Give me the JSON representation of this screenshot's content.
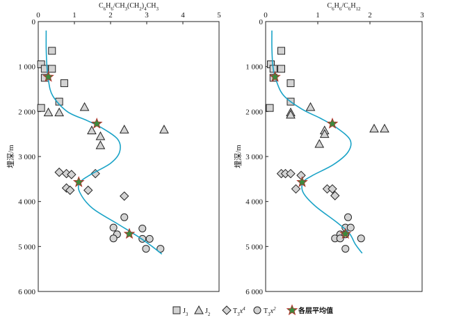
{
  "chart_data": [
    {
      "type": "scatter",
      "title": "C6H6/CH3(CH2)4CH3",
      "title_parts": [
        {
          "t": "C",
          "s": ""
        },
        {
          "t": "6",
          "s": "sub"
        },
        {
          "t": "H",
          "s": ""
        },
        {
          "t": "6",
          "s": "sub"
        },
        {
          "t": "/CH",
          "s": ""
        },
        {
          "t": "3",
          "s": "sub"
        },
        {
          "t": "(CH",
          "s": ""
        },
        {
          "t": "2",
          "s": "sub"
        },
        {
          "t": ")",
          "s": ""
        },
        {
          "t": "4",
          "s": "sub"
        },
        {
          "t": "CH",
          "s": ""
        },
        {
          "t": "3",
          "s": "sub"
        }
      ],
      "ylabel": "埋深/m",
      "xlim": [
        0,
        5
      ],
      "ylim": [
        0,
        6000
      ],
      "x_ticks": [
        "0",
        "1",
        "2",
        "3",
        "4",
        "5"
      ],
      "y_ticks": [
        "0",
        "1 000",
        "2 000",
        "3 000",
        "4 000",
        "5 000",
        "6 000"
      ],
      "series": [
        {
          "name": "J3",
          "marker": "square",
          "points": [
            [
              0.38,
              650
            ],
            [
              0.08,
              950
            ],
            [
              0.18,
              1050
            ],
            [
              0.38,
              1050
            ],
            [
              0.18,
              1250
            ],
            [
              0.72,
              1370
            ],
            [
              0.58,
              1780
            ],
            [
              0.08,
              1920
            ]
          ]
        },
        {
          "name": "J2",
          "marker": "triangle",
          "points": [
            [
              1.28,
              1900
            ],
            [
              0.28,
              2020
            ],
            [
              0.58,
              2020
            ],
            [
              1.48,
              2420
            ],
            [
              1.72,
              2550
            ],
            [
              1.72,
              2750
            ],
            [
              2.38,
              2400
            ],
            [
              3.48,
              2400
            ]
          ]
        },
        {
          "name": "T3x4",
          "marker": "diamond",
          "points": [
            [
              0.58,
              3350
            ],
            [
              0.78,
              3380
            ],
            [
              0.92,
              3400
            ],
            [
              0.78,
              3700
            ],
            [
              0.88,
              3750
            ],
            [
              1.58,
              3380
            ],
            [
              1.38,
              3750
            ],
            [
              2.38,
              3880
            ]
          ]
        },
        {
          "name": "T3x2",
          "marker": "circle",
          "points": [
            [
              2.38,
              4350
            ],
            [
              2.08,
              4580
            ],
            [
              2.18,
              4730
            ],
            [
              2.88,
              4600
            ],
            [
              3.08,
              4830
            ],
            [
              2.88,
              4830
            ],
            [
              2.08,
              4820
            ],
            [
              2.98,
              5050
            ],
            [
              3.38,
              5050
            ]
          ]
        },
        {
          "name": "各层平均值",
          "marker": "star",
          "points": [
            [
              0.28,
              1230
            ],
            [
              1.62,
              2270
            ],
            [
              1.12,
              3570
            ],
            [
              2.52,
              4720
            ]
          ]
        }
      ],
      "trend_line": [
        [
          0.22,
          200
        ],
        [
          0.22,
          600
        ],
        [
          0.24,
          1000
        ],
        [
          0.28,
          1300
        ],
        [
          0.4,
          1650
        ],
        [
          0.8,
          2000
        ],
        [
          1.35,
          2200
        ],
        [
          1.75,
          2360
        ],
        [
          2.2,
          2620
        ],
        [
          2.25,
          2900
        ],
        [
          2.0,
          3150
        ],
        [
          1.45,
          3400
        ],
        [
          1.15,
          3580
        ],
        [
          1.15,
          3800
        ],
        [
          1.5,
          4150
        ],
        [
          2.2,
          4500
        ],
        [
          2.8,
          4800
        ],
        [
          3.15,
          5000
        ],
        [
          3.42,
          5170
        ]
      ]
    },
    {
      "type": "scatter",
      "title": "C6H6/C6H12",
      "title_parts": [
        {
          "t": "C",
          "s": ""
        },
        {
          "t": "6",
          "s": "sub"
        },
        {
          "t": "H",
          "s": ""
        },
        {
          "t": "6",
          "s": "sub"
        },
        {
          "t": "/C",
          "s": ""
        },
        {
          "t": "6",
          "s": "sub"
        },
        {
          "t": "H",
          "s": ""
        },
        {
          "t": "12",
          "s": "sub"
        }
      ],
      "ylabel": "埋深/m",
      "xlim": [
        0,
        3
      ],
      "ylim": [
        0,
        6000
      ],
      "x_ticks": [
        "0",
        "1",
        "2",
        "3"
      ],
      "y_ticks": [
        "0",
        "1 000",
        "2 000",
        "3 000",
        "4 000",
        "5 000",
        "6 000"
      ],
      "series": [
        {
          "name": "J3",
          "marker": "square",
          "points": [
            [
              0.3,
              650
            ],
            [
              0.1,
              950
            ],
            [
              0.15,
              1050
            ],
            [
              0.3,
              1050
            ],
            [
              0.15,
              1250
            ],
            [
              0.48,
              1370
            ],
            [
              0.48,
              1780
            ],
            [
              0.08,
              1920
            ]
          ]
        },
        {
          "name": "J2",
          "marker": "triangle",
          "points": [
            [
              0.86,
              1900
            ],
            [
              0.48,
              2020
            ],
            [
              0.48,
              2070
            ],
            [
              1.13,
              2420
            ],
            [
              1.13,
              2500
            ],
            [
              1.03,
              2720
            ],
            [
              2.08,
              2380
            ],
            [
              2.28,
              2380
            ]
          ]
        },
        {
          "name": "T3x4",
          "marker": "diamond",
          "points": [
            [
              0.3,
              3380
            ],
            [
              0.38,
              3380
            ],
            [
              0.48,
              3380
            ],
            [
              0.68,
              3420
            ],
            [
              0.58,
              3720
            ],
            [
              1.18,
              3720
            ],
            [
              1.28,
              3720
            ],
            [
              1.33,
              3870
            ]
          ]
        },
        {
          "name": "T3x2",
          "marker": "circle",
          "points": [
            [
              1.58,
              4350
            ],
            [
              1.53,
              4580
            ],
            [
              1.63,
              4580
            ],
            [
              1.43,
              4730
            ],
            [
              1.53,
              4730
            ],
            [
              1.83,
              4820
            ],
            [
              1.33,
              4820
            ],
            [
              1.43,
              4820
            ],
            [
              1.53,
              5050
            ]
          ]
        },
        {
          "name": "各层平均值",
          "marker": "star",
          "points": [
            [
              0.18,
              1230
            ],
            [
              1.28,
              2270
            ],
            [
              0.7,
              3570
            ],
            [
              1.53,
              4720
            ]
          ]
        }
      ],
      "trend_line": [
        [
          0.12,
          200
        ],
        [
          0.12,
          600
        ],
        [
          0.14,
          1000
        ],
        [
          0.2,
          1300
        ],
        [
          0.35,
          1650
        ],
        [
          0.7,
          1950
        ],
        [
          1.05,
          2150
        ],
        [
          1.35,
          2350
        ],
        [
          1.62,
          2630
        ],
        [
          1.58,
          2900
        ],
        [
          1.3,
          3180
        ],
        [
          0.9,
          3420
        ],
        [
          0.72,
          3570
        ],
        [
          0.72,
          3800
        ],
        [
          0.95,
          4100
        ],
        [
          1.35,
          4450
        ],
        [
          1.6,
          4700
        ],
        [
          1.72,
          4950
        ],
        [
          1.85,
          5150
        ]
      ]
    }
  ],
  "legend": [
    {
      "marker": "square",
      "base": "J",
      "sub": "3",
      "sup": ""
    },
    {
      "marker": "triangle",
      "base": "J",
      "sub": "2",
      "sup": ""
    },
    {
      "marker": "diamond",
      "base": "T",
      "sub": "3",
      "sup": "",
      "tail": "x",
      "tailsup": "4"
    },
    {
      "marker": "circle",
      "base": "T",
      "sub": "3",
      "sup": "",
      "tail": "x",
      "tailsup": "2"
    },
    {
      "marker": "star",
      "base": "各层平均值",
      "sub": "",
      "sup": ""
    }
  ],
  "colors": {
    "line": "#1aa3c7",
    "star_fill": "#3b8a3e",
    "star_stroke": "#b5312b",
    "marker_fill": "#d3d3d3",
    "marker_stroke": "#222222"
  }
}
